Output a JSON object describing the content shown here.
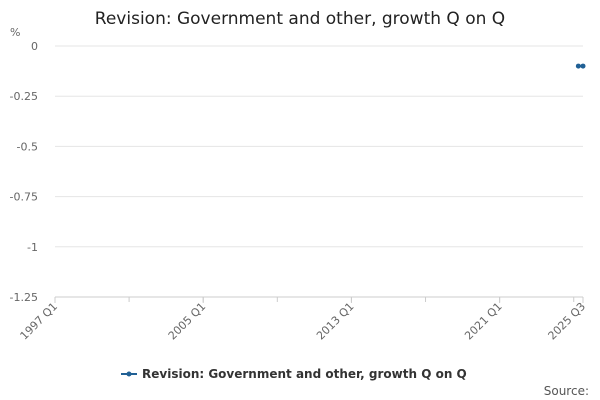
{
  "chart_data": {
    "type": "line",
    "title": "Revision: Government and other, growth Q on Q",
    "ylabel": "%",
    "xlabel": "",
    "ylim": [
      -1.25,
      0
    ],
    "yticks": [
      {
        "value": 0,
        "label": "0"
      },
      {
        "value": -0.25,
        "label": "-0.25"
      },
      {
        "value": -0.5,
        "label": "-0.5"
      },
      {
        "value": -0.75,
        "label": "-0.75"
      },
      {
        "value": -1,
        "label": "-1"
      },
      {
        "value": -1.25,
        "label": "-1.25"
      }
    ],
    "xticks": [
      {
        "value": "1997 Q1",
        "label": "1997 Q1"
      },
      {
        "value": "2005 Q1",
        "label": "2005 Q1"
      },
      {
        "value": "2013 Q1",
        "label": "2013 Q1"
      },
      {
        "value": "2021 Q1",
        "label": "2021 Q1"
      },
      {
        "value": "2025 Q3",
        "label": "2025 Q3"
      }
    ],
    "xrange": [
      "1997 Q1",
      "2025 Q3"
    ],
    "grid": true,
    "legend_position": "bottom",
    "series": [
      {
        "name": "Revision: Government and other, growth Q on Q",
        "color": "#206095",
        "points": [
          {
            "x": "2025 Q2",
            "y": -0.1
          },
          {
            "x": "2025 Q3",
            "y": -0.1
          }
        ]
      }
    ]
  },
  "footer": {
    "source_label": "Source:"
  },
  "colors": {
    "gridline": "#e5e5e5",
    "axis": "#cccccc",
    "series": "#206095"
  }
}
